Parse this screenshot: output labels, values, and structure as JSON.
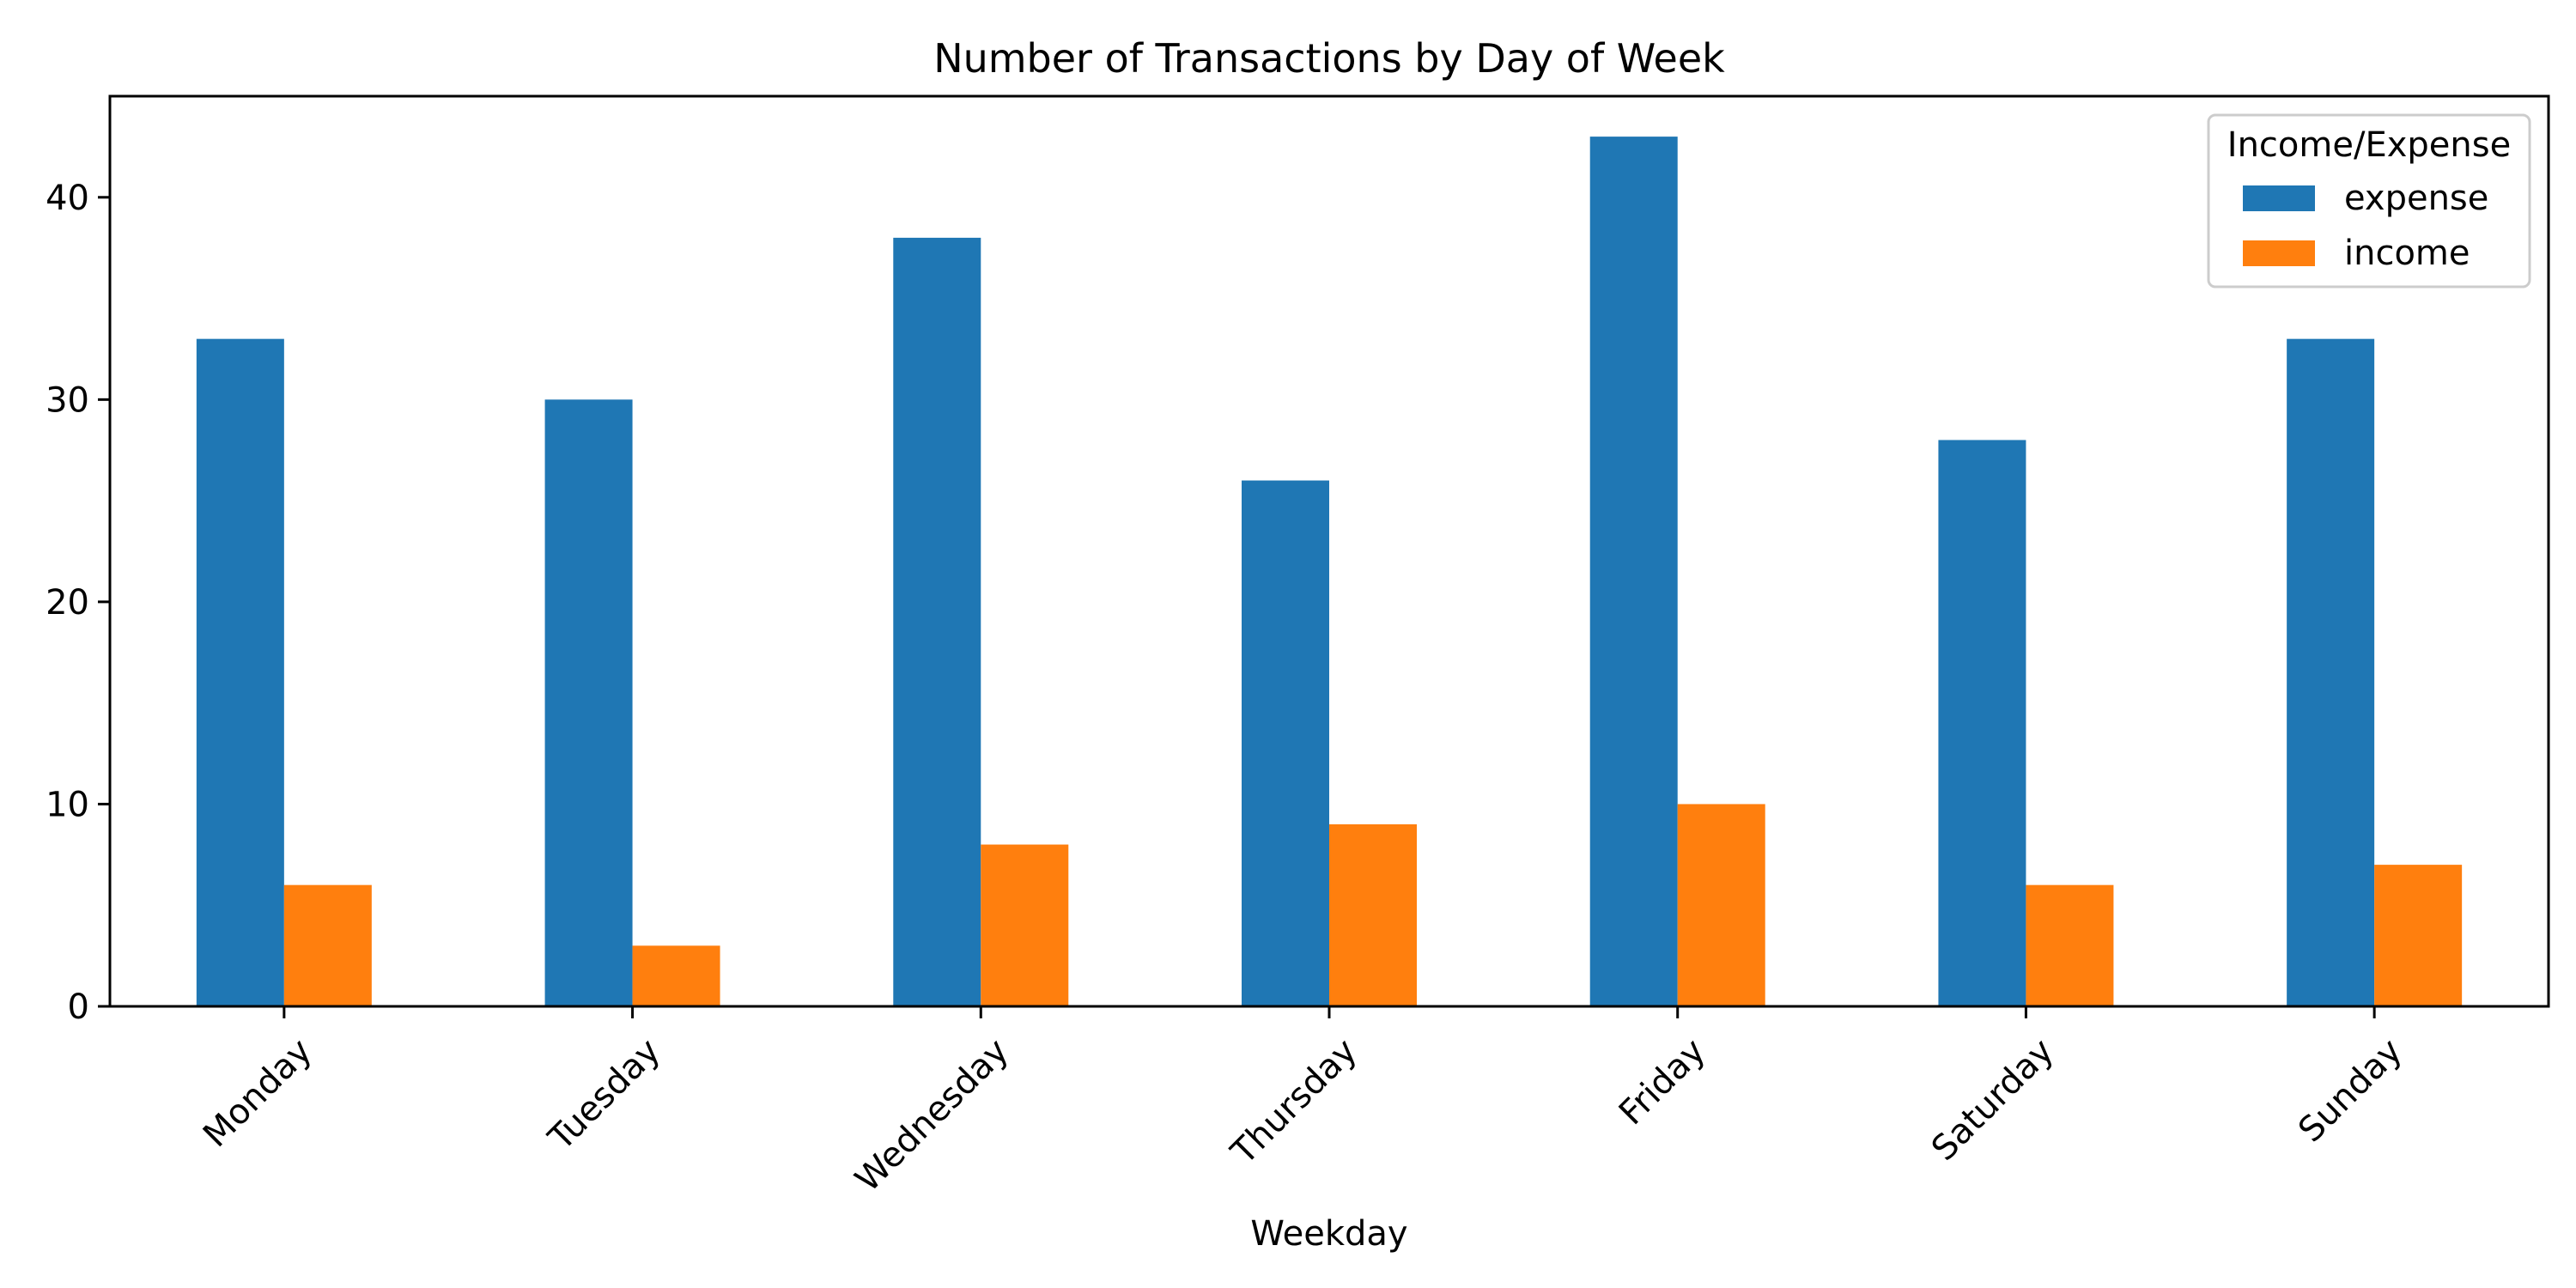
{
  "chart_data": {
    "type": "bar",
    "title": "Number of Transactions by Day of Week",
    "xlabel": "Weekday",
    "ylabel": "",
    "categories": [
      "Monday",
      "Tuesday",
      "Wednesday",
      "Thursday",
      "Friday",
      "Saturday",
      "Sunday"
    ],
    "series": [
      {
        "name": "expense",
        "color": "#1f77b4",
        "values": [
          33,
          30,
          38,
          26,
          43,
          28,
          33
        ]
      },
      {
        "name": "income",
        "color": "#ff7f0e",
        "values": [
          6,
          3,
          8,
          9,
          10,
          6,
          7
        ]
      }
    ],
    "ylim": [
      0,
      45
    ],
    "yticks": [
      "0",
      "10",
      "20",
      "30",
      "40"
    ],
    "grid": false,
    "legend": {
      "title": "Income/Expense",
      "placement": "top-right"
    },
    "x_tick_rotation_deg": 45
  }
}
